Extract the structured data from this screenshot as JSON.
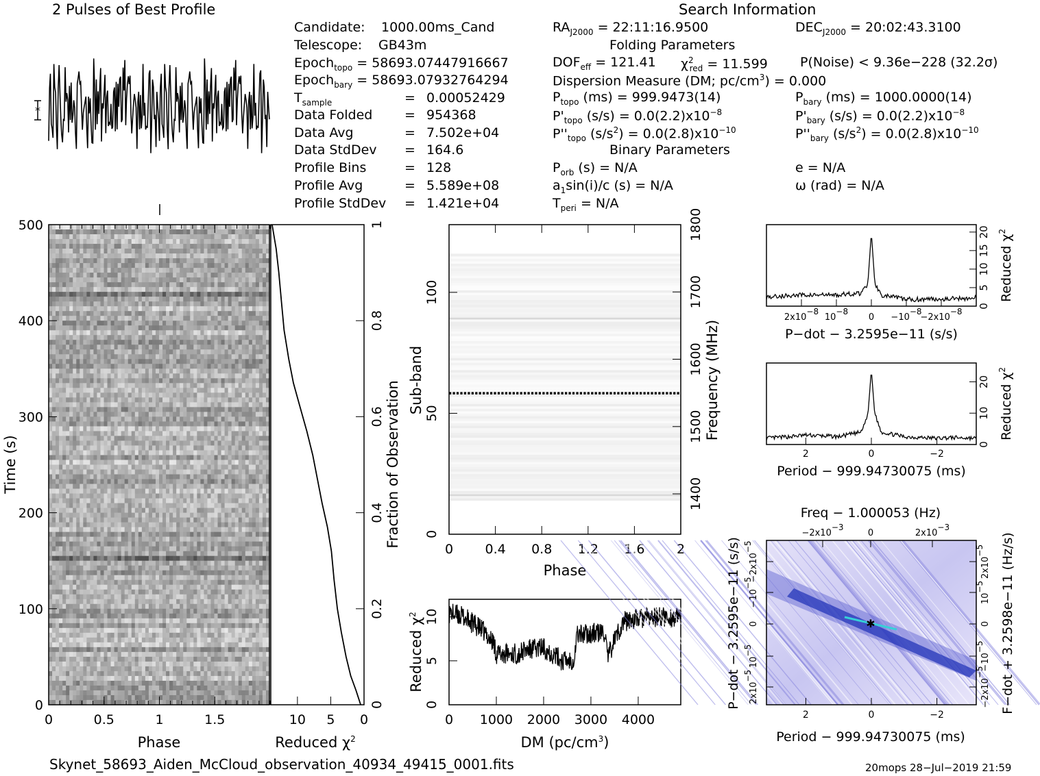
{
  "header": {
    "profile_title": "2 Pulses of Best Profile",
    "search_title": "Search Information",
    "candidate_label": "Candidate:",
    "candidate_value": "1000.00ms_Cand",
    "telescope_label": "Telescope:",
    "telescope_value": "GB43m",
    "epoch_topo_label": "Epoch",
    "epoch_topo_sub": "topo",
    "epoch_topo_value": "= 58693.07447916667",
    "epoch_bary_label": "Epoch",
    "epoch_bary_sub": "bary",
    "epoch_bary_value": "= 58693.07932764294",
    "tsample_label": "T",
    "tsample_sub": "sample",
    "tsample_eq": "=",
    "tsample_value": "0.00052429",
    "data_folded_label": "Data Folded",
    "data_folded_eq": "=",
    "data_folded_value": "954368",
    "data_avg_label": "Data Avg",
    "data_avg_eq": "=",
    "data_avg_value": "7.502e+04",
    "data_std_label": "Data StdDev",
    "data_std_eq": "=",
    "data_std_value": "164.6",
    "profile_bins_label": "Profile Bins",
    "profile_bins_eq": "=",
    "profile_bins_value": "128",
    "profile_avg_label": "Profile Avg",
    "profile_avg_eq": "=",
    "profile_avg_value": "5.589e+08",
    "profile_std_label": "Profile StdDev",
    "profile_std_eq": "=",
    "profile_std_value": "1.421e+04",
    "ra_label": "RA",
    "ra_sub": "J2000",
    "ra_value": "= 22:11:16.9500",
    "dec_label": "DEC",
    "dec_sub": "J2000",
    "dec_value": "= 20:02:43.3100",
    "folding_title": "Folding Parameters",
    "dof_text": "DOF",
    "dof_sub": "eff",
    "dof_value": "= 121.41",
    "chi_label": "χ",
    "chi_sup": "2",
    "chi_sub": "red",
    "chi_value": "= 11.599",
    "pnoise_text": "P(Noise) < 9.36e−228   (32.2σ)",
    "dm_text": "Dispersion Measure (DM; pc/cm",
    "dm_sup": "3",
    "dm_value": ") = 0.000",
    "ptopo_label": "P",
    "ptopo_sub": "topo",
    "ptopo_value": "(ms)  =   999.9473(14)",
    "pbary_label": "P",
    "pbary_sub": "bary",
    "pbary_value": "(ms)  =   1000.0000(14)",
    "pdtopo_label": "P'",
    "pdtopo_sub": "topo",
    "pdtopo_value": "(s/s) = 0.0(2.2)x10",
    "pdtopo_sup": "−8",
    "pdbary_label": "P'",
    "pdbary_sub": "bary",
    "pdbary_value": "(s/s) = 0.0(2.2)x10",
    "pdbary_sup": "−8",
    "pddtopo_label": "P''",
    "pddtopo_sub": "topo",
    "pddtopo_value": "(s/s",
    "pddtopo_value_sup": "2",
    "pddtopo_value2": ") = 0.0(2.8)x10",
    "pddtopo_sup": "−10",
    "pddbary_label": "P''",
    "pddbary_sub": "bary",
    "pddbary_value": "(s/s",
    "pddbary_value_sup": "2",
    "pddbary_value2": ") = 0.0(2.8)x10",
    "pddbary_sup": "−10",
    "binary_title": "Binary Parameters",
    "porb_label": "P",
    "porb_sub": "orb",
    "porb_value": "(s) = N/A",
    "e_text": "e = N/A",
    "a1_label": "a",
    "a1_sub": "1",
    "a1_value": "sin(i)/c (s) = N/A",
    "omega_text": "ω (rad) = N/A",
    "tperi_label": "T",
    "tperi_sub": "peri",
    "tperi_value": "= N/A"
  },
  "footer": {
    "filename": "Skynet_58693_Aiden_McCloud_observation_40934_49415_0001.fits",
    "stamp": "20mops 28−Jul−2019 21:59"
  },
  "colors": {
    "ink": "#000000",
    "pp_low": "#d9d6f5",
    "pp_mid": "#6f72d8",
    "pp_high": "#1d2fb6",
    "pp_peak": "#36d0d8"
  },
  "chart_data": [
    {
      "id": "profile",
      "type": "line",
      "title": "2 Pulses of Best Profile",
      "x_range": [
        0,
        2
      ],
      "points": 256,
      "note_values": "two identical 128-bin pulses, noise-like profile"
    },
    {
      "id": "time-phase",
      "type": "heatmap",
      "xlabel": "Phase",
      "ylabel": "Time (s)",
      "xlim": [
        0,
        2
      ],
      "ylim": [
        0,
        500
      ],
      "xticks": [
        "0",
        "0.5",
        "1",
        "1.5"
      ],
      "yticks": [
        "0",
        "100",
        "200",
        "300",
        "400",
        "500"
      ]
    },
    {
      "id": "time-chi",
      "type": "line",
      "xlabel": "Reduced χ",
      "xlabel_sup": "2",
      "ylabel": "Fraction of Observation",
      "xlim": [
        14,
        0
      ],
      "ylim": [
        0,
        1
      ],
      "xticks": [
        "10",
        "5",
        "0"
      ],
      "yticks": [
        "0",
        "0.2",
        "0.4",
        "0.6",
        "0.8",
        "1"
      ],
      "x": [
        0.5,
        1.2,
        2.0,
        2.7,
        3.4,
        4.0,
        4.5,
        4.9,
        5.5,
        6.3,
        7.0,
        7.7,
        8.6,
        9.6,
        10.6,
        11.3,
        12.0,
        12.4,
        12.8,
        13.2,
        13.8
      ],
      "y": [
        0.0,
        0.03,
        0.06,
        0.1,
        0.15,
        0.2,
        0.26,
        0.32,
        0.37,
        0.42,
        0.47,
        0.52,
        0.57,
        0.62,
        0.67,
        0.72,
        0.78,
        0.84,
        0.9,
        0.95,
        1.0
      ]
    },
    {
      "id": "subband-phase",
      "type": "heatmap",
      "xlabel": "Phase",
      "ylabel": "Sub-band",
      "ylabel_right": "Frequency (MHz)",
      "xlim": [
        0,
        2
      ],
      "ylim": [
        0,
        128
      ],
      "xticks": [
        "0",
        "0.4",
        "0.8",
        "1.2",
        "1.6",
        "2"
      ],
      "yticks": [
        "0",
        "50",
        "100"
      ],
      "yticks_right": [
        "1400",
        "1500",
        "1600",
        "1700",
        "1800"
      ],
      "freq_range": [
        1340,
        1800
      ],
      "notable_bands": [
        16,
        58,
        89
      ]
    },
    {
      "id": "dm-chi",
      "type": "line",
      "xlabel": "DM (pc/cm",
      "xlabel_sup": "3",
      "xlabel_end": ")",
      "ylabel": "Reduced χ",
      "ylabel_sup": "2",
      "xlim": [
        0,
        4900
      ],
      "ylim": [
        0,
        12
      ],
      "xticks": [
        "0",
        "1000",
        "2000",
        "3000",
        "4000"
      ],
      "yticks": [
        "0",
        "5",
        "10"
      ],
      "x": [
        0,
        300,
        700,
        950,
        1000,
        1500,
        1600,
        2000,
        2400,
        2650,
        2700,
        3300,
        3350,
        3500,
        3700,
        4000,
        4500,
        4900
      ],
      "y": [
        10.5,
        10.0,
        8.5,
        7.0,
        5.8,
        5.8,
        6.2,
        6.5,
        5.0,
        5.2,
        8.0,
        8.2,
        5.2,
        7.5,
        9.5,
        9.8,
        10.0,
        9.8
      ]
    },
    {
      "id": "pdot-chi",
      "type": "line",
      "xlabel": "P−dot − 3.2595e−11 (s/s)",
      "ylabel": "Reduced χ",
      "ylabel_sup": "2",
      "xlim": [
        3e-08,
        -3e-08
      ],
      "ylim": [
        0,
        22
      ],
      "xticks": [
        "2x10",
        "10",
        "0",
        "−10",
        "−2x10"
      ],
      "xticks_sup": [
        "−8",
        "−8",
        "",
        "−8",
        "−8"
      ],
      "yticks": [
        "0",
        "5",
        "10",
        "15",
        "20"
      ],
      "x": [
        3e-08,
        2e-08,
        1e-08,
        3e-09,
        1e-09,
        0,
        -1e-09,
        -3e-09,
        -1e-08,
        -2e-08,
        -3e-08
      ],
      "y": [
        2.5,
        3.0,
        3.0,
        3.5,
        6.0,
        20.0,
        6.0,
        3.0,
        1.8,
        2.0,
        2.2
      ]
    },
    {
      "id": "period-chi",
      "type": "line",
      "xlabel": "Period − 999.94730075 (ms)",
      "ylabel": "Reduced χ",
      "ylabel_sup": "2",
      "xlim": [
        3.2,
        -3.2
      ],
      "ylim": [
        0,
        26
      ],
      "xticks": [
        "2",
        "0",
        "−2"
      ],
      "yticks": [
        "0",
        "10",
        "20"
      ],
      "x": [
        3.2,
        2.5,
        2.0,
        1.0,
        0.3,
        0.1,
        0,
        -0.1,
        -0.3,
        -1.0,
        -2.0,
        -2.5,
        -3.2
      ],
      "y": [
        2.0,
        2.5,
        3.0,
        2.5,
        4.0,
        10.0,
        24.0,
        10.0,
        4.0,
        2.5,
        2.0,
        2.2,
        2.0
      ]
    },
    {
      "id": "p-pdot",
      "type": "heatmap",
      "title": "Freq − 1.000053 (Hz)",
      "xlabel": "Period − 999.94730075 (ms)",
      "ylabel": "P−dot − 3.2595e−11 (s/s)",
      "ylabel_right": "F−dot + 3.2598e−11 (Hz/s)",
      "xlim": [
        3.2,
        -3.2
      ],
      "ylim": [
        3e-05,
        -3e-05
      ],
      "xticks": [
        "2",
        "0",
        "−2"
      ],
      "xticks_top": [
        "−2x10",
        "0",
        "2x10"
      ],
      "xticks_top_sup": [
        "−3",
        "",
        "−3"
      ],
      "yticks": [
        "−2x10",
        "−10",
        "0",
        "10",
        "2x10"
      ],
      "yticks_sup": [
        "−5",
        "−5",
        "",
        "−5",
        "−5"
      ],
      "yticks_right": [
        "2x10",
        "10",
        "0",
        "−10",
        "−2x10"
      ],
      "yticks_right_sup": [
        "−5",
        "−5",
        "",
        "−5",
        "−5"
      ]
    }
  ]
}
